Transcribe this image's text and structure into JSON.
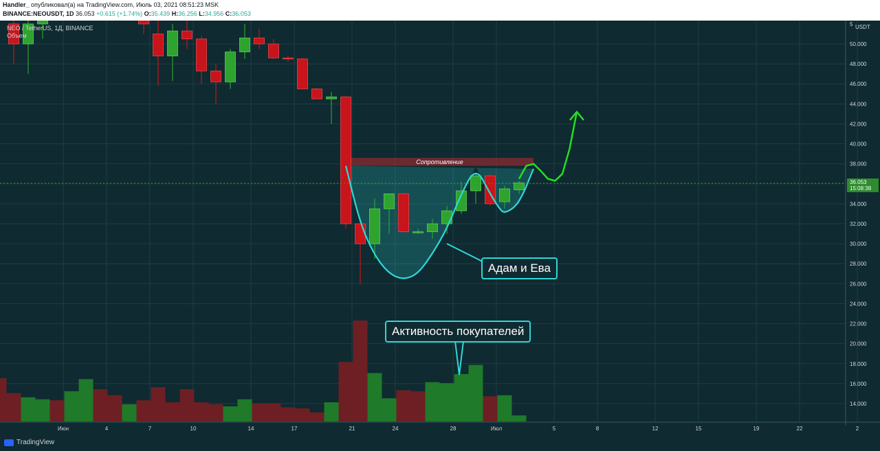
{
  "header": {
    "author": "Handler_",
    "published_text": "опубликовал(а) на TradingView.com, Июль 03, 2021 08:51:23 MSK",
    "symbol_label": "BINANCE:NEOUSDT, 1D",
    "last": "36.053",
    "change": "+0.615 (+1.74%)",
    "o_label": "O:",
    "o": "35.439",
    "h_label": "H:",
    "h": "36.256",
    "l_label": "L:",
    "l": "34.956",
    "c_label": "C:",
    "c": "36.053"
  },
  "legend": {
    "pair": "NEO / TetherUS, 1Д, BINANCE",
    "volume_label": "Объем"
  },
  "price_axis": {
    "unit": "USDT",
    "top_cut": "5",
    "current_price": "36.053",
    "countdown": "15:08:38"
  },
  "annotations": {
    "resistance": "Сопротивление",
    "pattern": "Адам и Ева",
    "buyers": "Активность покупателей"
  },
  "footer": {
    "brand": "TradingView"
  },
  "colors": {
    "background": "#0f2a30",
    "bull": "#2ea32e",
    "bear": "#c8141b",
    "accent": "#2fd8d8",
    "forecast": "#22e022",
    "resistance_zone": "#7a2a30"
  },
  "chart_data": {
    "type": "candlestick",
    "ylim": [
      12.6,
      50.8
    ],
    "y_ticks": [
      "50.000",
      "48.000",
      "46.000",
      "44.000",
      "42.000",
      "40.000",
      "38.000",
      "36.000",
      "34.000",
      "32.000",
      "30.000",
      "28.000",
      "26.000",
      "24.000",
      "22.000",
      "20.000",
      "18.000",
      "16.000",
      "14.000"
    ],
    "y_tick_values": [
      50,
      48,
      46,
      44,
      42,
      40,
      38,
      36,
      34,
      32,
      30,
      28,
      26,
      24,
      22,
      20,
      18,
      16,
      14
    ],
    "x_ticks": [
      {
        "label": "Июн",
        "day": 0
      },
      {
        "label": "4",
        "day": 3
      },
      {
        "label": "7",
        "day": 6
      },
      {
        "label": "10",
        "day": 9
      },
      {
        "label": "14",
        "day": 13
      },
      {
        "label": "17",
        "day": 16
      },
      {
        "label": "21",
        "day": 20
      },
      {
        "label": "24",
        "day": 23
      },
      {
        "label": "28",
        "day": 27
      },
      {
        "label": "Июл",
        "day": 30
      },
      {
        "label": "5",
        "day": 34
      },
      {
        "label": "8",
        "day": 37
      },
      {
        "label": "12",
        "day": 41
      },
      {
        "label": "15",
        "day": 44
      },
      {
        "label": "19",
        "day": 48
      },
      {
        "label": "22",
        "day": 51
      },
      {
        "label": "2",
        "day": 55
      }
    ],
    "candles": [
      {
        "day": 0,
        "o": 52.0,
        "h": 54.0,
        "l": 48.0,
        "c": 50.0
      },
      {
        "day": 1,
        "o": 50.0,
        "h": 53.0,
        "l": 47.0,
        "c": 52.0
      },
      {
        "day": 2,
        "o": 52.0,
        "h": 55.0,
        "l": 50.5,
        "c": 53.5
      },
      {
        "day": 9,
        "o": 53.5,
        "h": 54.0,
        "l": 51.0,
        "c": 52.0
      },
      {
        "day": 10,
        "o": 51.0,
        "h": 53.0,
        "l": 45.8,
        "c": 48.8
      },
      {
        "day": 11,
        "o": 48.8,
        "h": 52.0,
        "l": 46.3,
        "c": 51.3
      },
      {
        "day": 12,
        "o": 51.3,
        "h": 53.0,
        "l": 49.5,
        "c": 50.5
      },
      {
        "day": 13,
        "o": 50.5,
        "h": 50.8,
        "l": 46.0,
        "c": 47.3
      },
      {
        "day": 14,
        "o": 47.3,
        "h": 48.0,
        "l": 44.0,
        "c": 46.2
      },
      {
        "day": 15,
        "o": 46.2,
        "h": 49.5,
        "l": 45.5,
        "c": 49.2
      },
      {
        "day": 16,
        "o": 49.2,
        "h": 52.0,
        "l": 48.5,
        "c": 50.6
      },
      {
        "day": 17,
        "o": 50.6,
        "h": 51.5,
        "l": 49.5,
        "c": 50.0
      },
      {
        "day": 18,
        "o": 50.0,
        "h": 50.5,
        "l": 48.5,
        "c": 48.6
      },
      {
        "day": 19,
        "o": 48.6,
        "h": 48.8,
        "l": 48.2,
        "c": 48.5
      },
      {
        "day": 20,
        "o": 48.5,
        "h": 48.6,
        "l": 45.5,
        "c": 45.5
      },
      {
        "day": 21,
        "o": 45.5,
        "h": 45.6,
        "l": 44.5,
        "c": 44.5
      },
      {
        "day": 22,
        "o": 44.5,
        "h": 45.2,
        "l": 42.0,
        "c": 44.7
      },
      {
        "day": 23,
        "o": 44.7,
        "h": 44.8,
        "l": 31.5,
        "c": 32.0
      },
      {
        "day": 24,
        "o": 32.0,
        "h": 32.5,
        "l": 26.0,
        "c": 30.0
      },
      {
        "day": 25,
        "o": 30.0,
        "h": 34.5,
        "l": 28.5,
        "c": 33.5
      },
      {
        "day": 26,
        "o": 33.5,
        "h": 35.0,
        "l": 31.0,
        "c": 35.0
      },
      {
        "day": 27,
        "o": 35.0,
        "h": 35.2,
        "l": 31.0,
        "c": 31.2
      },
      {
        "day": 28,
        "o": 31.2,
        "h": 31.5,
        "l": 31.0,
        "c": 31.2
      },
      {
        "day": 29,
        "o": 31.2,
        "h": 32.5,
        "l": 30.5,
        "c": 32.0
      },
      {
        "day": 30,
        "o": 32.0,
        "h": 33.8,
        "l": 31.0,
        "c": 33.3
      },
      {
        "day": 31,
        "o": 33.3,
        "h": 36.2,
        "l": 33.0,
        "c": 35.3
      },
      {
        "day": 32,
        "o": 35.3,
        "h": 37.0,
        "l": 34.0,
        "c": 36.8
      },
      {
        "day": 33,
        "o": 36.8,
        "h": 37.0,
        "l": 33.8,
        "c": 34.0
      },
      {
        "day": 34,
        "o": 34.2,
        "h": 35.8,
        "l": 33.5,
        "c": 35.5
      },
      {
        "day": 35,
        "o": 35.4,
        "h": 36.3,
        "l": 35.0,
        "c": 36.1
      }
    ],
    "volume_ylim": [
      0,
      100
    ],
    "volume": [
      {
        "day": -1,
        "v": 43,
        "up": false
      },
      {
        "day": 0,
        "v": 28,
        "up": false
      },
      {
        "day": 1,
        "v": 24,
        "up": true
      },
      {
        "day": 2,
        "v": 22,
        "up": true
      },
      {
        "day": 3,
        "v": 21,
        "up": false
      },
      {
        "day": 4,
        "v": 30,
        "up": true
      },
      {
        "day": 5,
        "v": 42,
        "up": true
      },
      {
        "day": 6,
        "v": 32,
        "up": false
      },
      {
        "day": 7,
        "v": 26,
        "up": false
      },
      {
        "day": 8,
        "v": 17,
        "up": true
      },
      {
        "day": 9,
        "v": 21,
        "up": false
      },
      {
        "day": 10,
        "v": 34,
        "up": false
      },
      {
        "day": 11,
        "v": 19,
        "up": false
      },
      {
        "day": 12,
        "v": 32,
        "up": false
      },
      {
        "day": 13,
        "v": 19,
        "up": false
      },
      {
        "day": 14,
        "v": 17,
        "up": false
      },
      {
        "day": 15,
        "v": 15,
        "up": true
      },
      {
        "day": 16,
        "v": 22,
        "up": true
      },
      {
        "day": 17,
        "v": 18,
        "up": false
      },
      {
        "day": 18,
        "v": 18,
        "up": false
      },
      {
        "day": 19,
        "v": 14,
        "up": false
      },
      {
        "day": 20,
        "v": 13,
        "up": false
      },
      {
        "day": 21,
        "v": 9,
        "up": false
      },
      {
        "day": 22,
        "v": 19,
        "up": true
      },
      {
        "day": 23,
        "v": 59,
        "up": false
      },
      {
        "day": 24,
        "v": 100,
        "up": false
      },
      {
        "day": 25,
        "v": 48,
        "up": true
      },
      {
        "day": 26,
        "v": 23,
        "up": true
      },
      {
        "day": 27,
        "v": 31,
        "up": false
      },
      {
        "day": 28,
        "v": 30,
        "up": false
      },
      {
        "day": 29,
        "v": 39,
        "up": true
      },
      {
        "day": 30,
        "v": 38,
        "up": true
      },
      {
        "day": 31,
        "v": 47,
        "up": true
      },
      {
        "day": 32,
        "v": 56,
        "up": true
      },
      {
        "day": 33,
        "v": 25,
        "up": false
      },
      {
        "day": 34,
        "v": 26,
        "up": true
      },
      {
        "day": 35,
        "v": 6,
        "up": true
      }
    ],
    "resistance_zone": {
      "from_day": 23,
      "to_day": 36,
      "low": 37.8,
      "high": 38.6
    },
    "pattern_curve": [
      {
        "day": 23,
        "p": 37.8
      },
      {
        "day": 24,
        "p": 32.0
      },
      {
        "day": 25,
        "p": 28.8
      },
      {
        "day": 26,
        "p": 27.0
      },
      {
        "day": 27,
        "p": 26.4
      },
      {
        "day": 28,
        "p": 27.0
      },
      {
        "day": 29,
        "p": 29.0
      },
      {
        "day": 30,
        "p": 31.5
      },
      {
        "day": 31,
        "p": 35.0
      },
      {
        "day": 32,
        "p": 37.7
      },
      {
        "day": 33,
        "p": 35.0
      },
      {
        "day": 33.6,
        "p": 33.6
      },
      {
        "day": 34,
        "p": 33.0
      },
      {
        "day": 35,
        "p": 34.0
      },
      {
        "day": 36,
        "p": 37.5
      }
    ],
    "forecast_curve": [
      {
        "day": 35,
        "p": 36.5
      },
      {
        "day": 35.5,
        "p": 37.8
      },
      {
        "day": 36,
        "p": 38.0
      },
      {
        "day": 36.5,
        "p": 37.3
      },
      {
        "day": 37,
        "p": 36.5
      },
      {
        "day": 37.5,
        "p": 36.3
      },
      {
        "day": 38,
        "p": 37.0
      },
      {
        "day": 38.5,
        "p": 39.5
      },
      {
        "day": 39,
        "p": 43.2
      }
    ]
  }
}
